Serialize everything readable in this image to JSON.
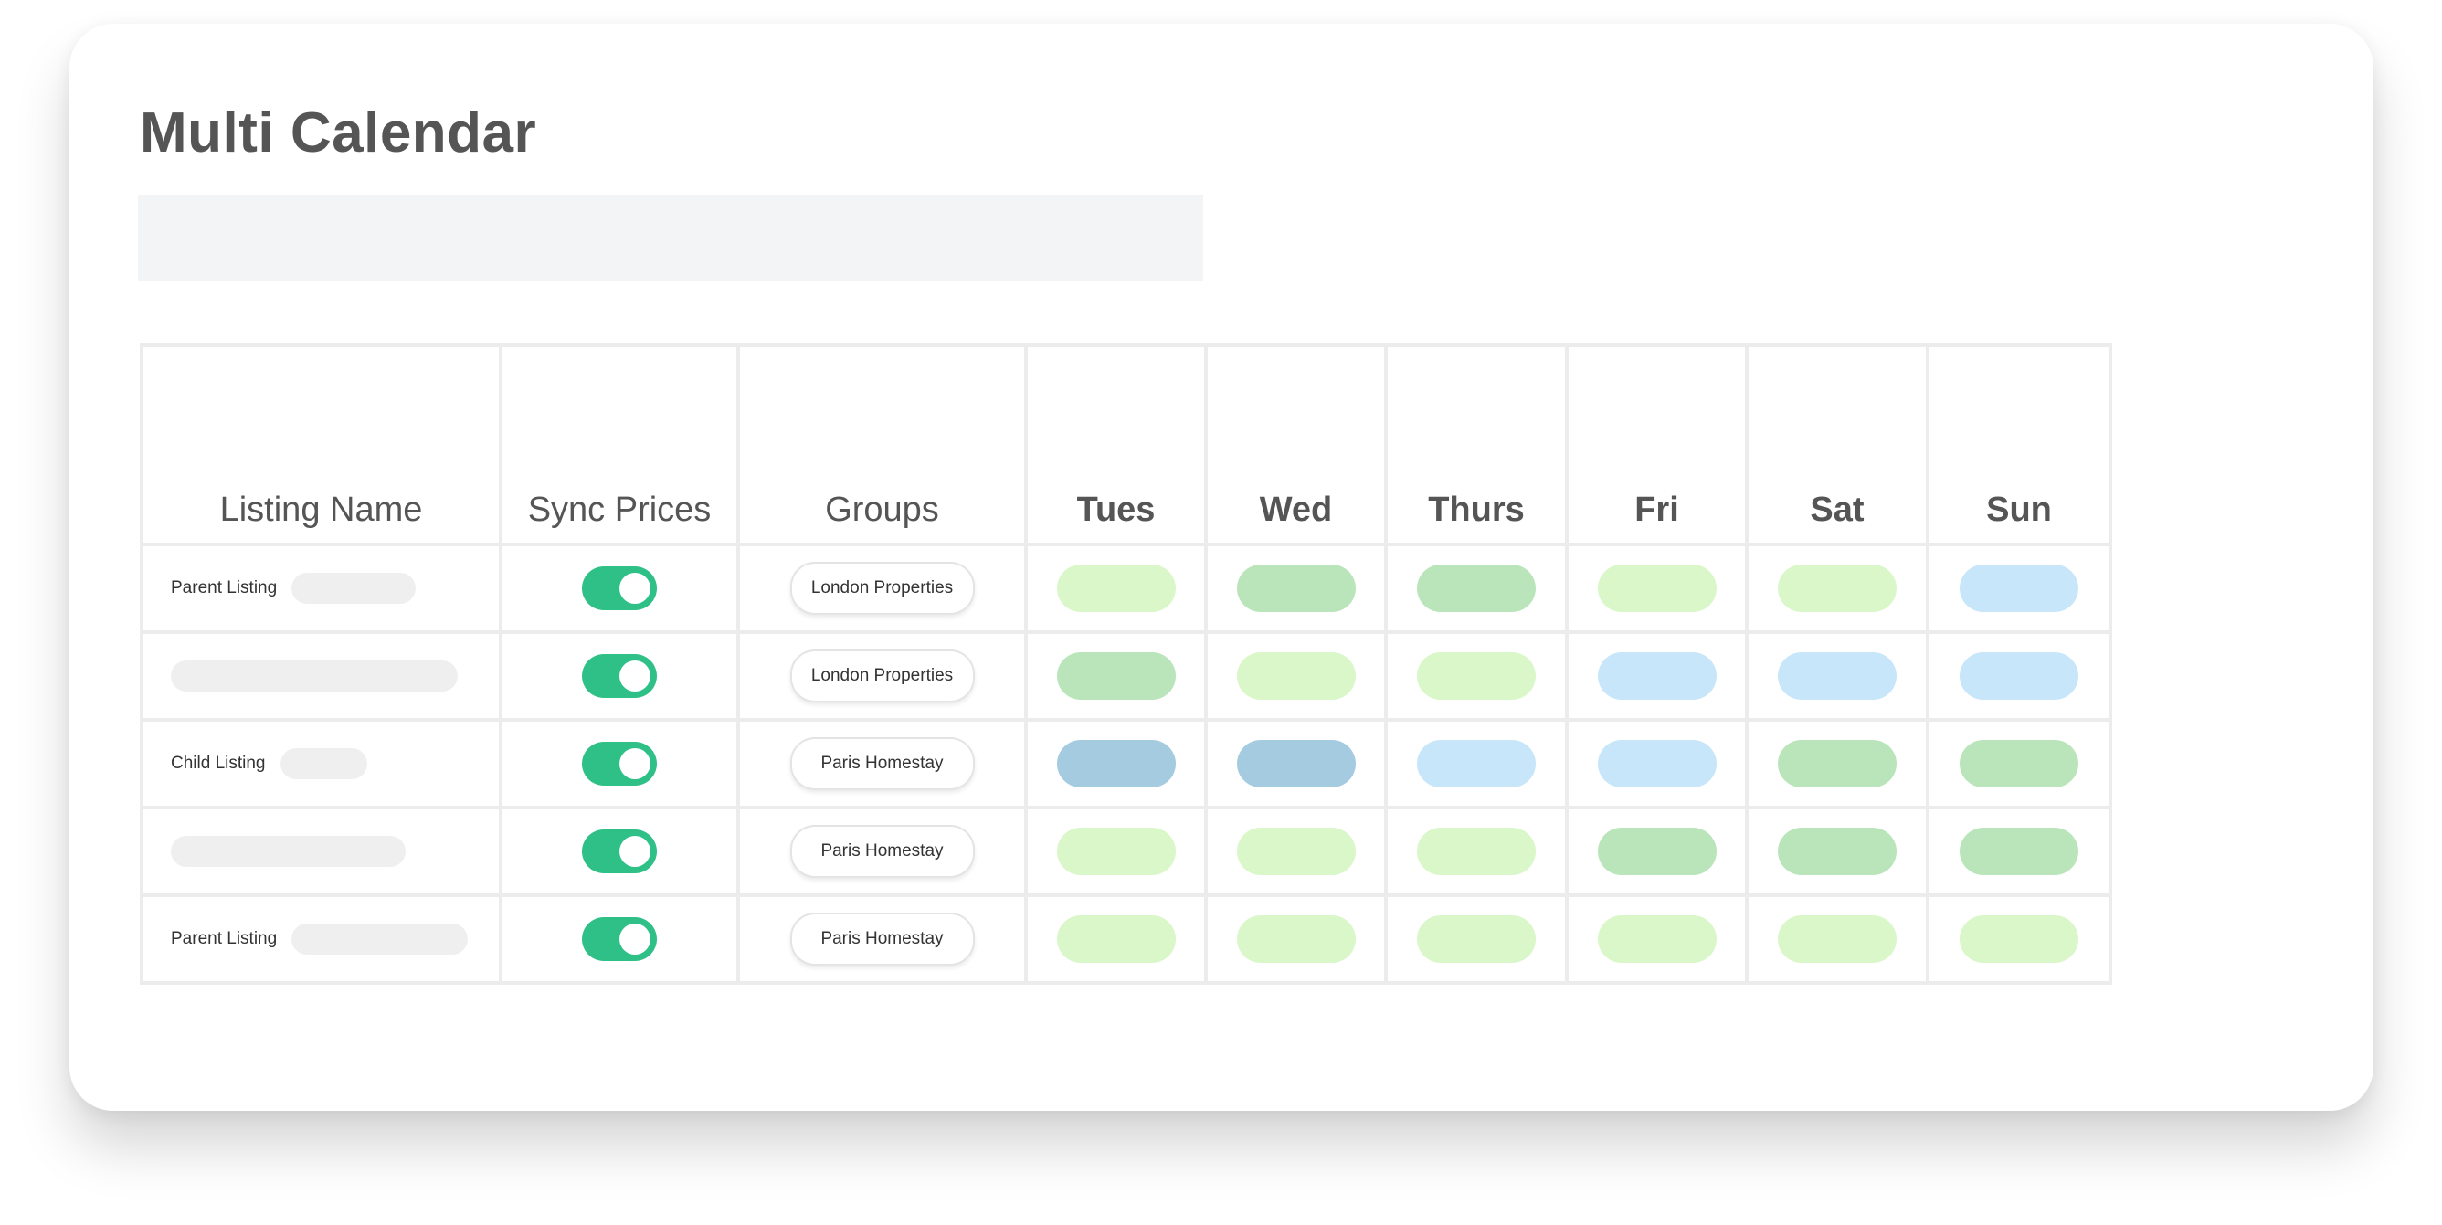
{
  "page": {
    "title": "Multi Calendar"
  },
  "table": {
    "headers": {
      "listing": "Listing Name",
      "sync": "Sync Prices",
      "groups": "Groups",
      "days": [
        "Tues",
        "Wed",
        "Thurs",
        "Fri",
        "Sat",
        "Sun"
      ]
    },
    "rows": [
      {
        "label": "Parent Listing",
        "sync": true,
        "group": "London Properties",
        "days": [
          "light-green",
          "medium-green",
          "medium-green",
          "light-green",
          "light-green",
          "light-blue"
        ]
      },
      {
        "label": "",
        "sync": true,
        "group": "London Properties",
        "days": [
          "medium-green",
          "light-green",
          "light-green",
          "light-blue",
          "light-blue",
          "light-blue"
        ]
      },
      {
        "label": "Child Listing",
        "sync": true,
        "group": "Paris Homestay",
        "days": [
          "steel-blue",
          "steel-blue",
          "light-blue",
          "light-blue",
          "medium-green",
          "medium-green"
        ]
      },
      {
        "label": "",
        "sync": true,
        "group": "Paris Homestay",
        "days": [
          "light-green",
          "light-green",
          "light-green",
          "medium-green",
          "medium-green",
          "medium-green"
        ]
      },
      {
        "label": "Parent Listing",
        "sync": true,
        "group": "Paris Homestay",
        "days": [
          "light-green",
          "light-green",
          "light-green",
          "light-green",
          "light-green",
          "light-green"
        ]
      }
    ]
  },
  "colors": {
    "toggle_on": "#2fc088",
    "light-green": "#daf7c9",
    "medium-green": "#bae5bb",
    "light-blue": "#c8e6f9",
    "steel-blue": "#a5cbe0"
  }
}
